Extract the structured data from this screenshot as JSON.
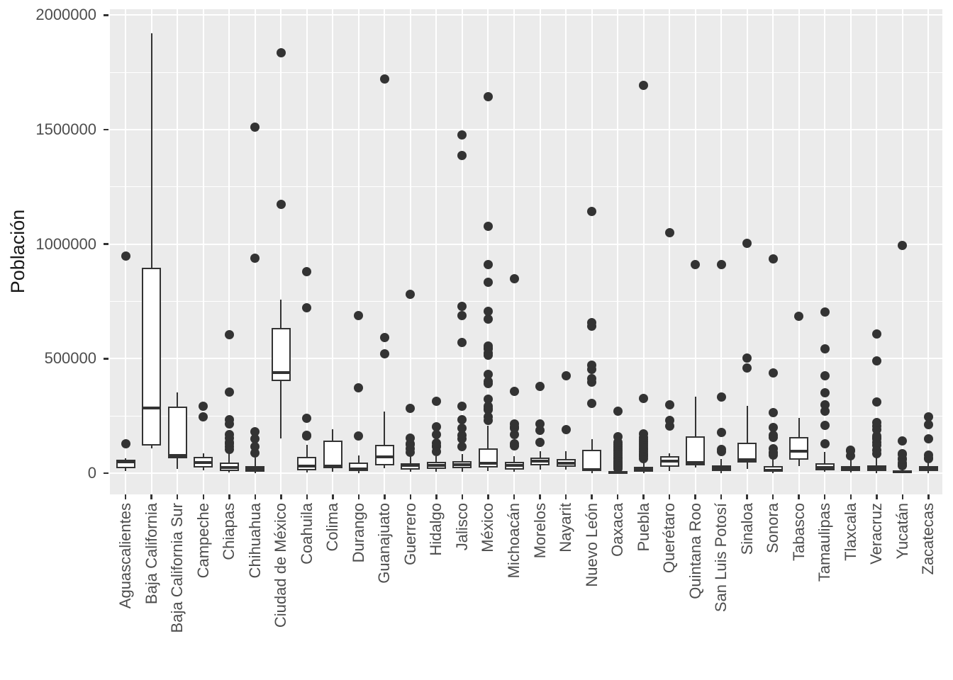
{
  "y_axis": {
    "title": "Población"
  },
  "chart_data": {
    "type": "boxplot",
    "title": "",
    "xlabel": "",
    "ylabel": "Población",
    "ylim": [
      -93000,
      2026000
    ],
    "grid": true,
    "legend": false,
    "y_ticks": [
      {
        "value": 0,
        "label": "0"
      },
      {
        "value": 500000,
        "label": "500000"
      },
      {
        "value": 1000000,
        "label": "1000000"
      },
      {
        "value": 1500000,
        "label": "1500000"
      },
      {
        "value": 2000000,
        "label": "2000000"
      }
    ],
    "y_minor_ticks": [
      250000,
      750000,
      1250000,
      1750000
    ],
    "categories": [
      "Aguascalientes",
      "Baja California",
      "Baja California Sur",
      "Campeche",
      "Chiapas",
      "Chihuahua",
      "Ciudad de México",
      "Coahuila",
      "Colima",
      "Durango",
      "Guanajuato",
      "Guerrero",
      "Hidalgo",
      "Jalisco",
      "México",
      "Michoacán",
      "Morelos",
      "Nayarit",
      "Nuevo León",
      "Oaxaca",
      "Puebla",
      "Querétaro",
      "Quintana Roo",
      "San Luis Potosí",
      "Sinaloa",
      "Sonora",
      "Tabasco",
      "Tamaulipas",
      "Tlaxcala",
      "Veracruz",
      "Yucatán",
      "Zacatecas"
    ],
    "series": [
      {
        "name": "Aguascalientes",
        "whisker_low": 9000,
        "q1": 20000,
        "median": 48000,
        "q3": 60000,
        "whisker_high": 66000,
        "outliers": [
          129000,
          949000
        ]
      },
      {
        "name": "Baja California",
        "whisker_low": 108000,
        "q1": 119000,
        "median": 285000,
        "q3": 898000,
        "whisker_high": 1922000,
        "outliers": []
      },
      {
        "name": "Baja California Sur",
        "whisker_low": 18000,
        "q1": 66000,
        "median": 77000,
        "q3": 290000,
        "whisker_high": 351000,
        "outliers": []
      },
      {
        "name": "Campeche",
        "whisker_low": 12000,
        "q1": 26000,
        "median": 47000,
        "q3": 70000,
        "whisker_high": 87000,
        "outliers": [
          246000,
          292000
        ]
      },
      {
        "name": "Chiapas",
        "whisker_low": 2000,
        "q1": 8000,
        "median": 26000,
        "q3": 45000,
        "whisker_high": 87000,
        "outliers": [
          103000,
          116000,
          129000,
          135000,
          154000,
          167000,
          216000,
          234000,
          354000,
          604000
        ]
      },
      {
        "name": "Chihuahua",
        "whisker_low": 1000,
        "q1": 5000,
        "median": 17000,
        "q3": 31000,
        "whisker_high": 67000,
        "outliers": [
          87000,
          117000,
          151000,
          181000,
          938000,
          1512000
        ]
      },
      {
        "name": "Ciudad de México",
        "whisker_low": 152000,
        "q1": 401000,
        "median": 438000,
        "q3": 635000,
        "whisker_high": 759000,
        "outliers": [
          1173000,
          1836000
        ]
      },
      {
        "name": "Coahuila",
        "whisker_low": 4000,
        "q1": 12000,
        "median": 30000,
        "q3": 70000,
        "whisker_high": 122000,
        "outliers": [
          163000,
          166000,
          238000,
          721000,
          879000
        ]
      },
      {
        "name": "Colima",
        "whisker_low": 6000,
        "q1": 21000,
        "median": 30000,
        "q3": 143000,
        "whisker_high": 191000,
        "outliers": []
      },
      {
        "name": "Durango",
        "whisker_low": 1000,
        "q1": 9000,
        "median": 19000,
        "q3": 45000,
        "whisker_high": 76000,
        "outliers": [
          163000,
          373000,
          689000
        ]
      },
      {
        "name": "Guanajuato",
        "whisker_low": 20000,
        "q1": 35000,
        "median": 71000,
        "q3": 123000,
        "whisker_high": 270000,
        "outliers": [
          521000,
          593000,
          1721000
        ]
      },
      {
        "name": "Guerrero",
        "whisker_low": 5000,
        "q1": 15000,
        "median": 33000,
        "q3": 43000,
        "whisker_high": 77000,
        "outliers": [
          92000,
          105000,
          126000,
          127000,
          152000,
          283000,
          780000
        ]
      },
      {
        "name": "Hidalgo",
        "whisker_low": 5000,
        "q1": 18000,
        "median": 34000,
        "q3": 49000,
        "whisker_high": 74000,
        "outliers": [
          93000,
          115000,
          119000,
          130000,
          168000,
          203000,
          314000
        ]
      },
      {
        "name": "Jalisco",
        "whisker_low": 5000,
        "q1": 20000,
        "median": 36000,
        "q3": 53000,
        "whisker_high": 82000,
        "outliers": [
          115000,
          151000,
          164000,
          196000,
          234000,
          292000,
          570000,
          688000,
          728000,
          1386000,
          1476000
        ]
      },
      {
        "name": "México",
        "whisker_low": 8000,
        "q1": 26000,
        "median": 43000,
        "q3": 108000,
        "whisker_high": 206000,
        "outliers": [
          230000,
          247000,
          277000,
          284000,
          293000,
          323000,
          391000,
          400000,
          430000,
          516000,
          523000,
          542000,
          547000,
          555000,
          673000,
          706000,
          834000,
          911000,
          1077000,
          1645000
        ]
      },
      {
        "name": "Michoacán",
        "whisker_low": 5000,
        "q1": 15000,
        "median": 33000,
        "q3": 49000,
        "whisker_high": 74000,
        "outliers": [
          118000,
          128000,
          167000,
          197000,
          201000,
          216000,
          357000,
          849000
        ]
      },
      {
        "name": "Morelos",
        "whisker_low": 15000,
        "q1": 33000,
        "median": 51000,
        "q3": 67000,
        "whisker_high": 95000,
        "outliers": [
          134000,
          188000,
          215000,
          379000
        ]
      },
      {
        "name": "Nayarit",
        "whisker_low": 15000,
        "q1": 29000,
        "median": 43000,
        "q3": 62000,
        "whisker_high": 95000,
        "outliers": [
          190000,
          426000
        ]
      },
      {
        "name": "Nuevo León",
        "whisker_low": 1000,
        "q1": 8000,
        "median": 14000,
        "q3": 103000,
        "whisker_high": 148000,
        "outliers": [
          306000,
          397000,
          412000,
          454000,
          471000,
          643000,
          657000,
          1143000
        ]
      },
      {
        "name": "Oaxaca",
        "whisker_low": 500,
        "q1": 1500,
        "median": 4000,
        "q3": 9000,
        "whisker_high": 19000,
        "outliers": [
          21000,
          26000,
          31000,
          36000,
          42000,
          48000,
          55000,
          62000,
          70000,
          78000,
          87000,
          96000,
          105000,
          115000,
          126000,
          134000,
          159000,
          271000
        ]
      },
      {
        "name": "Puebla",
        "whisker_low": 1000,
        "q1": 5000,
        "median": 15000,
        "q3": 29000,
        "whisker_high": 57000,
        "outliers": [
          64000,
          71000,
          79000,
          86000,
          94000,
          102000,
          111000,
          120000,
          129000,
          138000,
          148000,
          156000,
          170000,
          327000,
          1692000
        ]
      },
      {
        "name": "Querétaro",
        "whisker_low": 10000,
        "q1": 27000,
        "median": 52000,
        "q3": 75000,
        "whisker_high": 87000,
        "outliers": [
          206000,
          231000,
          298000,
          1050000
        ]
      },
      {
        "name": "Quintana Roo",
        "whisker_low": 23000,
        "q1": 34000,
        "median": 47000,
        "q3": 161000,
        "whisker_high": 334000,
        "outliers": [
          911000
        ]
      },
      {
        "name": "San Luis Potosí",
        "whisker_low": 1000,
        "q1": 9000,
        "median": 20000,
        "q3": 35000,
        "whisker_high": 61000,
        "outliers": [
          94000,
          102000,
          178000,
          332000,
          912000
        ]
      },
      {
        "name": "Sinaloa",
        "whisker_low": 17000,
        "q1": 45000,
        "median": 60000,
        "q3": 133000,
        "whisker_high": 295000,
        "outliers": [
          459000,
          501000,
          1003000
        ]
      },
      {
        "name": "Sonora",
        "whisker_low": 1000,
        "q1": 6000,
        "median": 12000,
        "q3": 30000,
        "whisker_high": 63000,
        "outliers": [
          80000,
          89000,
          92000,
          107000,
          157000,
          164000,
          200000,
          265000,
          436000,
          936000
        ]
      },
      {
        "name": "Tabasco",
        "whisker_low": 31000,
        "q1": 58000,
        "median": 97000,
        "q3": 159000,
        "whisker_high": 241000,
        "outliers": [
          684000
        ]
      },
      {
        "name": "Tamaulipas",
        "whisker_low": 5000,
        "q1": 12000,
        "median": 25000,
        "q3": 42000,
        "whisker_high": 92000,
        "outliers": [
          128000,
          209000,
          270000,
          297000,
          350000,
          425000,
          542000,
          705000
        ]
      },
      {
        "name": "Tlaxcala",
        "whisker_low": 3000,
        "q1": 10000,
        "median": 19000,
        "q3": 30000,
        "whisker_high": 66000,
        "outliers": [
          77000,
          97000,
          100000
        ]
      },
      {
        "name": "Veracruz",
        "whisker_low": 1000,
        "q1": 10000,
        "median": 22000,
        "q3": 35000,
        "whisker_high": 70000,
        "outliers": [
          86000,
          101000,
          123000,
          134000,
          150000,
          154000,
          157000,
          161000,
          190000,
          206000,
          220000,
          310000,
          489000,
          607000
        ]
      },
      {
        "name": "Yucatán",
        "whisker_low": 1000,
        "q1": 3000,
        "median": 6000,
        "q3": 12000,
        "whisker_high": 25000,
        "outliers": [
          32000,
          36000,
          40000,
          45000,
          59000,
          62000,
          81000,
          86000,
          140000,
          995000
        ]
      },
      {
        "name": "Zacatecas",
        "whisker_low": 1000,
        "q1": 8000,
        "median": 18000,
        "q3": 30000,
        "whisker_high": 60000,
        "outliers": [
          64000,
          67000,
          79000,
          150000,
          212000,
          246000
        ]
      }
    ],
    "style": {
      "panel_bg": "#EBEBEB",
      "grid_color": "#FFFFFF",
      "box_fill": "#FFFFFF",
      "stroke": "#333333",
      "outlier_color": "#333333",
      "axis_text_color": "#4D4D4D",
      "axis_title_color": "#1A1A1A"
    }
  }
}
